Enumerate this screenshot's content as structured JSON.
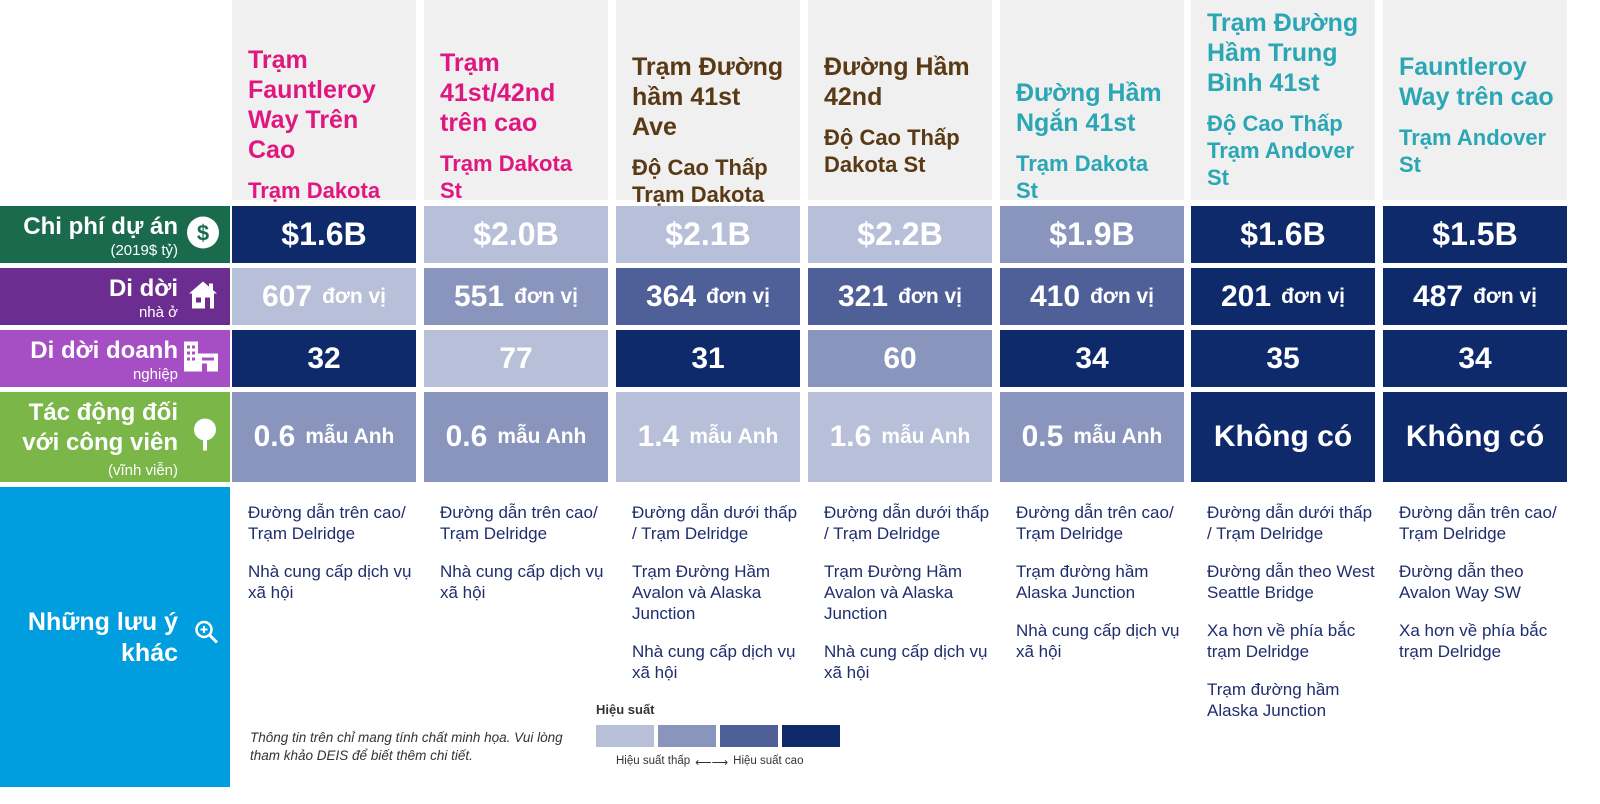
{
  "labels": {
    "cost": {
      "title": "Chi phí dự án",
      "sub": "(2019$ tỷ)",
      "icon": "dollar-icon",
      "color": "#1a6b4e"
    },
    "residential": {
      "title": "Di dời",
      "sub": "nhà ở",
      "icon": "house-icon",
      "color": "#6b2d8f"
    },
    "business": {
      "title": "Di dời doanh",
      "sub": "nghiệp",
      "icon": "building-icon",
      "color": "#a64fc4"
    },
    "park": {
      "title1": "Tác động đối",
      "title2": "với công viên",
      "sub": "(vĩnh viễn)",
      "icon": "tree-icon",
      "color": "#7ab648"
    },
    "notes": {
      "title1": "Những lưu ý",
      "title2": "khác",
      "icon": "magnifier-icon",
      "color": "#009ddf"
    }
  },
  "units": {
    "residential": "đơn vị",
    "park": "mẫu Anh"
  },
  "colors": {
    "p1": "#b7c0d8",
    "p2": "#8995bd",
    "p3": "#4f5f98",
    "p4": "#0f2a6b",
    "magenta": "#e0177f",
    "brown": "#5a3a14",
    "teal": "#2aa6b5"
  },
  "columns": [
    {
      "title": "Trạm Fauntleroy Way Trên Cao",
      "subtitle": "Trạm Dakota St",
      "color": "magenta",
      "cost": "$1.6B",
      "cost_level": 4,
      "residential": "607",
      "residential_level": 1,
      "business": "32",
      "business_level": 4,
      "park": "0.6",
      "park_level": 2,
      "notes": [
        "Đường dẫn trên cao/ Trạm Delridge",
        "Nhà cung cấp dịch vụ xã hội"
      ]
    },
    {
      "title": "Trạm 41st/42nd trên cao",
      "subtitle": "Trạm Dakota St",
      "color": "magenta",
      "cost": "$2.0B",
      "cost_level": 1,
      "residential": "551",
      "residential_level": 2,
      "business": "77",
      "business_level": 1,
      "park": "0.6",
      "park_level": 2,
      "notes": [
        "Đường dẫn trên cao/ Trạm Delridge",
        "Nhà cung cấp dịch vụ xã hội"
      ]
    },
    {
      "title": "Trạm Đường hầm 41st Ave",
      "subtitle": "Độ Cao Thấp Trạm Dakota St",
      "color": "brown",
      "cost": "$2.1B",
      "cost_level": 1,
      "residential": "364",
      "residential_level": 3,
      "business": "31",
      "business_level": 4,
      "park": "1.4",
      "park_level": 1,
      "notes": [
        "Đường dẫn dưới thấp / Trạm Delridge",
        "Trạm Đường Hầm Avalon và Alaska Junction",
        "Nhà cung cấp dịch vụ xã hội"
      ]
    },
    {
      "title": "Đường Hầm 42nd",
      "subtitle": "Độ Cao Thấp Dakota St",
      "color": "brown",
      "cost": "$2.2B",
      "cost_level": 1,
      "residential": "321",
      "residential_level": 3,
      "business": "60",
      "business_level": 2,
      "park": "1.6",
      "park_level": 1,
      "notes": [
        "Đường dẫn dưới thấp / Trạm Delridge",
        "Trạm Đường Hầm Avalon và Alaska Junction",
        "Nhà cung cấp dịch vụ xã hội"
      ]
    },
    {
      "title": "Đường Hầm Ngắn 41st",
      "subtitle": "Trạm Dakota St",
      "color": "teal",
      "cost": "$1.9B",
      "cost_level": 2,
      "residential": "410",
      "residential_level": 3,
      "business": "34",
      "business_level": 4,
      "park": "0.5",
      "park_level": 2,
      "notes": [
        "Đường dẫn trên cao/ Trạm Delridge",
        "Trạm đường hầm Alaska Junction",
        "Nhà cung cấp dịch vụ xã hội"
      ]
    },
    {
      "title": "Trạm Đường Hầm Trung Bình 41st",
      "subtitle": "Độ Cao Thấp Trạm Andover St",
      "color": "teal",
      "cost": "$1.6B",
      "cost_level": 4,
      "residential": "201",
      "residential_level": 4,
      "business": "35",
      "business_level": 4,
      "park": "Không có",
      "park_level": 4,
      "notes": [
        "Đường dẫn dưới thấp / Trạm Delridge",
        "Đường dẫn theo West Seattle Bridge",
        "Xa hơn về phía bắc trạm Delridge",
        "Trạm đường hầm Alaska Junction"
      ]
    },
    {
      "title": "Fauntleroy Way trên cao",
      "subtitle": "Trạm Andover St",
      "color": "teal",
      "cost": "$1.5B",
      "cost_level": 4,
      "residential": "487",
      "residential_level": 4,
      "business": "34",
      "business_level": 4,
      "park": "Không có",
      "park_level": 4,
      "notes": [
        "Đường dẫn trên cao/ Trạm Delridge",
        "Đường dẫn theo Avalon Way SW",
        "Xa hơn về phía bắc trạm Delridge"
      ]
    }
  ],
  "footnote": "Thông tin trên chỉ mang tính chất minh họa. Vui lòng tham khảo DEIS để biết thêm chi tiết.",
  "legend": {
    "title": "Hiệu suất",
    "low": "Hiệu suất thấp",
    "arrow": "⟵⟶",
    "high": "Hiệu suất cao"
  }
}
